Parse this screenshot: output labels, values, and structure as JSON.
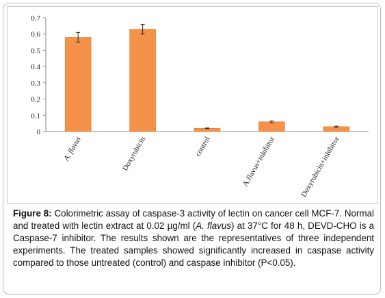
{
  "chart_data": {
    "type": "bar",
    "categories": [
      "A. flavus",
      "Doxyrubicin",
      "control",
      "A.flavus+inhibitor",
      "Doxyrubicin+inhibitor"
    ],
    "values": [
      0.58,
      0.63,
      0.02,
      0.06,
      0.03
    ],
    "error": [
      0.03,
      0.03,
      0.002,
      0.005,
      0.003
    ],
    "ylim": [
      0,
      0.7
    ],
    "yticks": [
      "0",
      "0.1",
      "0.2",
      "0.3",
      "0.4",
      "0.5",
      "0.6",
      "0.7"
    ],
    "grid": false,
    "legend": "none",
    "bar_color": "#f5924a",
    "bar_edge_color": "#e07a2e"
  },
  "caption": {
    "label": "Figure 8:",
    "segments": [
      " Colorimetric assay of caspase-3 activity of lectin on cancer cell MCF-7. Normal and treated with lectin extract at 0.02 µg/ml (",
      "A. flavus",
      ") at 37°C for 48 h, DEVD-CHO is a Caspase-7 inhibitor. The results shown are the representatives of three independent experiments. The treated samples showed significantly increased in caspase activity compared to those untreated (control) and caspase inhibitor (P<0.05)."
    ]
  }
}
